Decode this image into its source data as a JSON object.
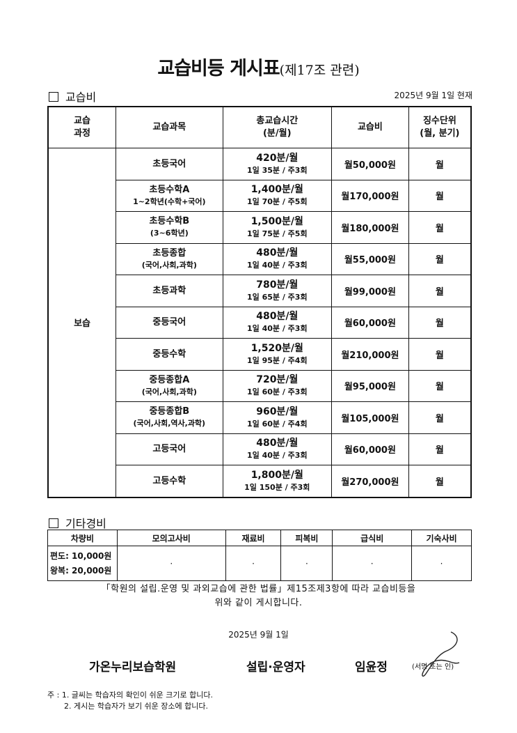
{
  "title": {
    "main": "교습비등 게시표",
    "sub": "(제17조 관련)"
  },
  "tuition_section": {
    "heading": "교습비",
    "as_of": "2025년 9월 1일 현재",
    "headers": [
      "교습\n과정",
      "교습과목",
      "총교습시간\n(분/월)",
      "교습비",
      "징수단위\n(월, 분기)"
    ],
    "course": "보습",
    "rows": [
      {
        "subject": "초등국어",
        "detail": "",
        "minutes": "420분/월",
        "schedule": "1일 35분 / 주3회",
        "fee": "월50,000원",
        "unit": "월"
      },
      {
        "subject": "초등수학A",
        "detail": "1~2학년(수학+국어)",
        "minutes": "1,400분/월",
        "schedule": "1일 70분 / 주5회",
        "fee": "월170,000원",
        "unit": "월"
      },
      {
        "subject": "초등수학B",
        "detail": "(3~6학년)",
        "minutes": "1,500분/월",
        "schedule": "1일 75분 / 주5회",
        "fee": "월180,000원",
        "unit": "월"
      },
      {
        "subject": "초등종합",
        "detail": "(국어,사회,과학)",
        "minutes": "480분/월",
        "schedule": "1일 40분 / 주3회",
        "fee": "월55,000원",
        "unit": "월"
      },
      {
        "subject": "초등과학",
        "detail": "",
        "minutes": "780분/월",
        "schedule": "1일 65분 / 주3회",
        "fee": "월99,000원",
        "unit": "월"
      },
      {
        "subject": "중등국어",
        "detail": "",
        "minutes": "480분/월",
        "schedule": "1일 40분 / 주3회",
        "fee": "월60,000원",
        "unit": "월"
      },
      {
        "subject": "중등수학",
        "detail": "",
        "minutes": "1,520분/월",
        "schedule": "1일 95분 / 주4회",
        "fee": "월210,000원",
        "unit": "월"
      },
      {
        "subject": "중등종합A",
        "detail": "(국어,사회,과학)",
        "minutes": "720분/월",
        "schedule": "1일 60분 / 주3회",
        "fee": "월95,000원",
        "unit": "월"
      },
      {
        "subject": "중등종합B",
        "detail": "(국어,사회,역사,과학)",
        "minutes": "960분/월",
        "schedule": "1일 60분 / 주4회",
        "fee": "월105,000원",
        "unit": "월"
      },
      {
        "subject": "고등국어",
        "detail": "",
        "minutes": "480분/월",
        "schedule": "1일 40분 / 주3회",
        "fee": "월60,000원",
        "unit": "월"
      },
      {
        "subject": "고등수학",
        "detail": "",
        "minutes": "1,800분/월",
        "schedule": "1일 150분 / 주3회",
        "fee": "월270,000원",
        "unit": "월"
      }
    ]
  },
  "other_section": {
    "heading": "기타경비",
    "headers": [
      "차량비",
      "모의고사비",
      "재료비",
      "피복비",
      "급식비",
      "기숙사비"
    ],
    "vehicle_one_way": "편도: 10,000원",
    "vehicle_round_trip": "왕복: 20,000원",
    "values": [
      "·",
      "·",
      "·",
      "·",
      "·"
    ]
  },
  "law_text": "「학원의 설립.운영 및 과외교습에 관한 법률」제15조제3항에 따라 교습비등을",
  "law_text_2": "위와 같이 게시합니다.",
  "date": "2025년 9월 1일",
  "academy_name": "가온누리보습학원",
  "operator_label": "설립·운영자",
  "operator_name": "임윤정",
  "signature_note": "(서명 또는 인)",
  "notes": [
    "주 : 1. 글씨는 학습자의 확인이 쉬운 크기로 합니다.",
    "2. 게시는 학습자가 보기 쉬운 장소에 합니다."
  ]
}
